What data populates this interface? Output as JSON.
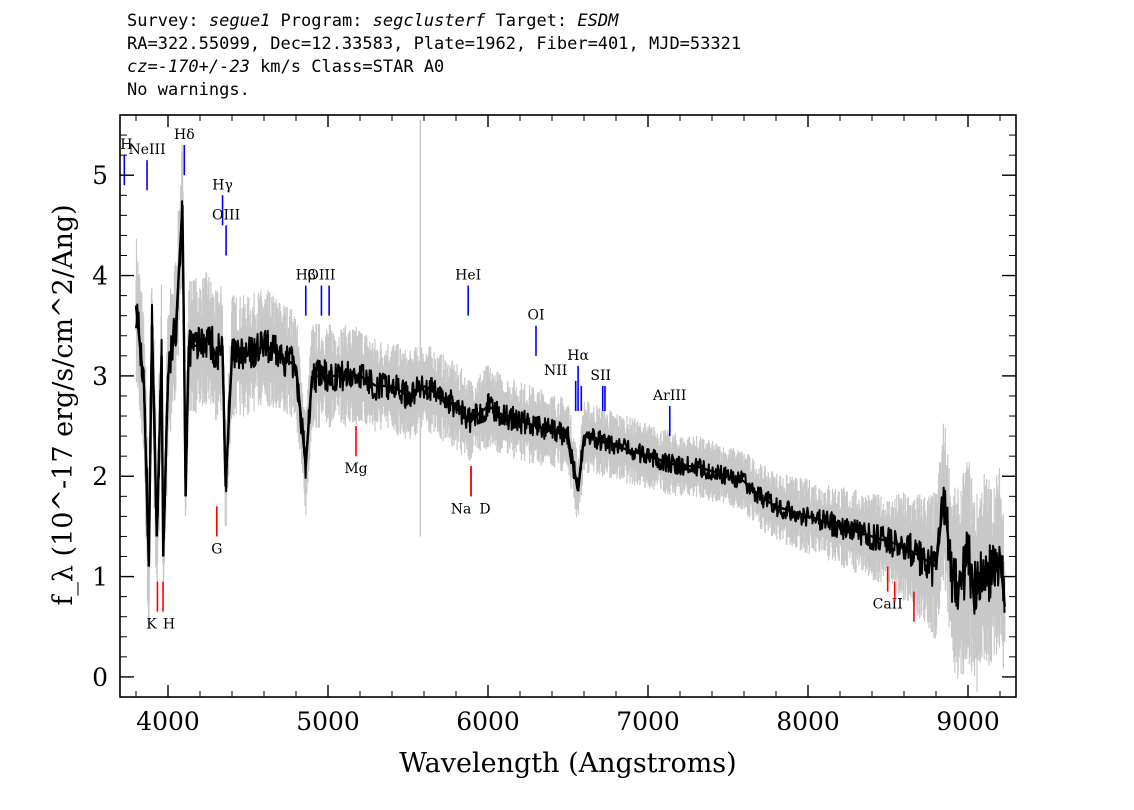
{
  "header": {
    "line1": [
      {
        "text": "Survey: ",
        "italic": false
      },
      {
        "text": "segue1",
        "italic": true
      },
      {
        "text": " Program: ",
        "italic": false
      },
      {
        "text": "segclusterf",
        "italic": true
      },
      {
        "text": " Target: ",
        "italic": false
      },
      {
        "text": "ESDM",
        "italic": true
      }
    ],
    "line2": "RA=322.55099, Dec=12.33583, Plate=1962, Fiber=401, MJD=53321",
    "line3": [
      {
        "text": "cz=-170+/-23",
        "italic": true
      },
      {
        "text": " km/s Class=STAR A0",
        "italic": false
      }
    ],
    "line4": "No warnings."
  },
  "chart_data": {
    "type": "line",
    "xlabel": "Wavelength (Angstroms)",
    "ylabel": "f_λ (10^-17 erg/s/cm^2/Ang)",
    "xlim": [
      3700,
      9300
    ],
    "ylim": [
      -0.2,
      5.6
    ],
    "xticks": [
      4000,
      5000,
      6000,
      7000,
      8000,
      9000
    ],
    "yticks": [
      0,
      1,
      2,
      3,
      4,
      5
    ],
    "colors": {
      "flux": "#000000",
      "error": "#c8c8c8",
      "emission": "#0000ff",
      "absorption": "#ff0000"
    },
    "series": [
      {
        "role": "flux",
        "x": [
          3800,
          3850,
          3880,
          3900,
          3930,
          3960,
          3970,
          4000,
          4050,
          4090,
          4100,
          4110,
          4130,
          4200,
          4250,
          4300,
          4340,
          4360,
          4400,
          4500,
          4600,
          4700,
          4800,
          4861,
          4900,
          5000,
          5100,
          5200,
          5300,
          5400,
          5500,
          5600,
          5700,
          5800,
          5890,
          6000,
          6100,
          6200,
          6300,
          6400,
          6500,
          6563,
          6600,
          6700,
          6800,
          6900,
          7000,
          7100,
          7200,
          7300,
          7400,
          7500,
          7600,
          7700,
          7800,
          7900,
          8000,
          8100,
          8200,
          8300,
          8400,
          8500,
          8600,
          8700,
          8800,
          8850,
          8900,
          8950,
          9000,
          9050,
          9100,
          9150,
          9200,
          9230
        ],
        "y": [
          3.7,
          2.9,
          1.1,
          3.5,
          1.4,
          3.2,
          1.2,
          3.0,
          3.5,
          4.7,
          3.4,
          1.8,
          3.3,
          3.3,
          3.4,
          3.2,
          3.3,
          1.9,
          3.2,
          3.2,
          3.3,
          3.2,
          3.1,
          2.1,
          3.0,
          3.0,
          3.0,
          3.0,
          2.9,
          2.9,
          2.8,
          2.9,
          2.8,
          2.7,
          2.55,
          2.7,
          2.6,
          2.55,
          2.5,
          2.45,
          2.4,
          1.85,
          2.4,
          2.35,
          2.3,
          2.25,
          2.2,
          2.15,
          2.1,
          2.1,
          2.05,
          2.0,
          1.95,
          1.8,
          1.7,
          1.65,
          1.6,
          1.55,
          1.5,
          1.45,
          1.4,
          1.35,
          1.3,
          1.2,
          1.1,
          1.8,
          1.0,
          0.9,
          1.2,
          0.8,
          1.1,
          1.0,
          1.2,
          0.7
        ]
      },
      {
        "role": "error",
        "note": "flux uncertainty band",
        "x": [
          3800,
          3900,
          4000,
          4200,
          4500,
          5000,
          5500,
          6000,
          6500,
          7000,
          7500,
          8000,
          8500,
          8800,
          9000,
          9230
        ],
        "y": [
          0.5,
          0.6,
          0.5,
          0.45,
          0.4,
          0.35,
          0.3,
          0.28,
          0.25,
          0.22,
          0.2,
          0.25,
          0.3,
          0.5,
          0.7,
          0.6
        ]
      }
    ],
    "lines": [
      {
        "label": "H",
        "wavelength": 3727,
        "kind": "emission",
        "y0": 4.9,
        "y1": 5.2
      },
      {
        "label": "NeIII",
        "wavelength": 3869,
        "kind": "emission",
        "y0": 4.85,
        "y1": 5.15
      },
      {
        "label": "Hδ",
        "wavelength": 4102,
        "kind": "emission",
        "y0": 5.0,
        "y1": 5.3
      },
      {
        "label": "Hγ",
        "wavelength": 4341,
        "kind": "emission",
        "y0": 4.5,
        "y1": 4.8
      },
      {
        "label": "OIII",
        "wavelength": 4363,
        "kind": "emission",
        "y0": 4.2,
        "y1": 4.5
      },
      {
        "label": "Hβ",
        "wavelength": 4861,
        "kind": "emission",
        "y0": 3.6,
        "y1": 3.9
      },
      {
        "label": "OIII",
        "wavelength": 4959,
        "kind": "emission",
        "y0": 3.6,
        "y1": 3.9
      },
      {
        "label": "",
        "wavelength": 5007,
        "kind": "emission",
        "y0": 3.6,
        "y1": 3.9
      },
      {
        "label": "HeI",
        "wavelength": 5876,
        "kind": "emission",
        "y0": 3.6,
        "y1": 3.9
      },
      {
        "label": "OI",
        "wavelength": 6300,
        "kind": "emission",
        "y0": 3.2,
        "y1": 3.5
      },
      {
        "label": "NII",
        "wavelength": 6548,
        "kind": "emission",
        "y0": 2.65,
        "y1": 2.95
      },
      {
        "label": "Hα",
        "wavelength": 6563,
        "kind": "emission",
        "y0": 2.65,
        "y1": 3.1
      },
      {
        "label": "",
        "wavelength": 6583,
        "kind": "emission",
        "y0": 2.65,
        "y1": 2.9
      },
      {
        "label": "SII",
        "wavelength": 6717,
        "kind": "emission",
        "y0": 2.65,
        "y1": 2.9
      },
      {
        "label": "",
        "wavelength": 6731,
        "kind": "emission",
        "y0": 2.65,
        "y1": 2.9
      },
      {
        "label": "ArIII",
        "wavelength": 7136,
        "kind": "emission",
        "y0": 2.4,
        "y1": 2.7
      },
      {
        "label": "K",
        "wavelength": 3934,
        "kind": "absorption",
        "y0": 0.65,
        "y1": 0.95
      },
      {
        "label": "H",
        "wavelength": 3969,
        "kind": "absorption",
        "y0": 0.65,
        "y1": 0.95
      },
      {
        "label": "G",
        "wavelength": 4305,
        "kind": "absorption",
        "y0": 1.4,
        "y1": 1.7
      },
      {
        "label": "Mg",
        "wavelength": 5175,
        "kind": "absorption",
        "y0": 2.2,
        "y1": 2.5
      },
      {
        "label": "Na",
        "wavelength": 5894,
        "kind": "absorption",
        "y0": 1.8,
        "y1": 2.1
      },
      {
        "label": "D",
        "wavelength": 5894,
        "kind": "absorption",
        "y0": 1.8,
        "y1": 2.1
      },
      {
        "label": "CaII",
        "wavelength": 8498,
        "kind": "absorption",
        "y0": 0.85,
        "y1": 1.1
      },
      {
        "label": "",
        "wavelength": 8542,
        "kind": "absorption",
        "y0": 0.75,
        "y1": 0.95
      },
      {
        "label": "",
        "wavelength": 8662,
        "kind": "absorption",
        "y0": 0.55,
        "y1": 0.85
      }
    ]
  }
}
